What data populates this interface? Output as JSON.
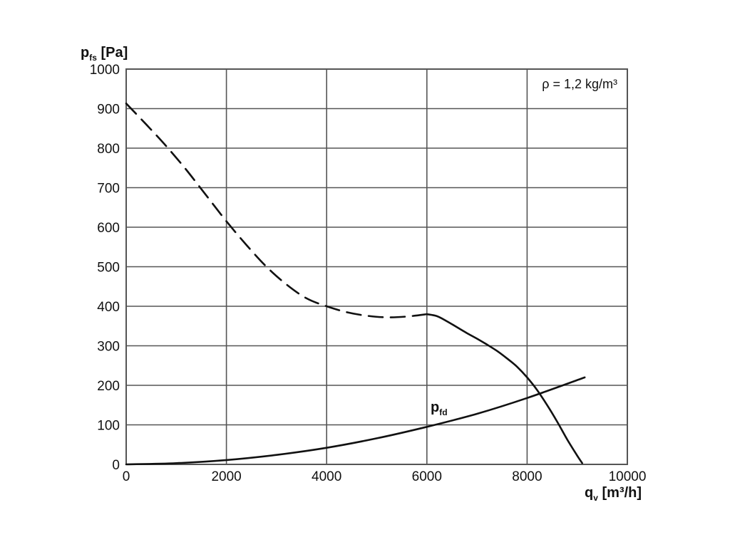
{
  "chart_data": {
    "type": "line",
    "xlabel": {
      "base": "q",
      "sub": "v",
      "unit": " [m³/h]"
    },
    "ylabel": {
      "base": "p",
      "sub": "fs",
      "unit": " [Pa]"
    },
    "xlim": [
      0,
      10000
    ],
    "ylim": [
      0,
      1000
    ],
    "x_ticks": [
      "0",
      "2000",
      "4000",
      "6000",
      "8000",
      "10000"
    ],
    "y_ticks": [
      "0",
      "100",
      "200",
      "300",
      "400",
      "500",
      "600",
      "700",
      "800",
      "900",
      "1000"
    ],
    "grid": true,
    "annotation": "ρ = 1,2 kg/m³",
    "series": [
      {
        "style": "dashed",
        "x": [
          0,
          400,
          800,
          1200,
          1600,
          2000,
          2400,
          2800,
          3200,
          3600,
          4000,
          4400,
          4800,
          5200,
          5600,
          6000
        ],
        "y": [
          913,
          860,
          805,
          745,
          680,
          615,
          555,
          500,
          455,
          420,
          400,
          385,
          376,
          372,
          374,
          380
        ]
      },
      {
        "style": "solid",
        "x": [
          6000,
          6200,
          6400,
          6600,
          6800,
          7000,
          7200,
          7400,
          7600,
          7800,
          8000,
          8200,
          8400,
          8600,
          8800,
          9000,
          9100
        ],
        "y": [
          380,
          375,
          362,
          347,
          332,
          318,
          303,
          287,
          268,
          247,
          220,
          188,
          150,
          108,
          63,
          22,
          3
        ]
      },
      {
        "name": {
          "base": "p",
          "sub": "fd"
        },
        "style": "solid",
        "x": [
          0,
          1000,
          2000,
          3000,
          4000,
          5000,
          6000,
          7000,
          8000,
          9150
        ],
        "y": [
          0,
          3,
          11,
          24,
          42,
          66,
          95,
          128,
          168,
          220
        ]
      }
    ]
  }
}
